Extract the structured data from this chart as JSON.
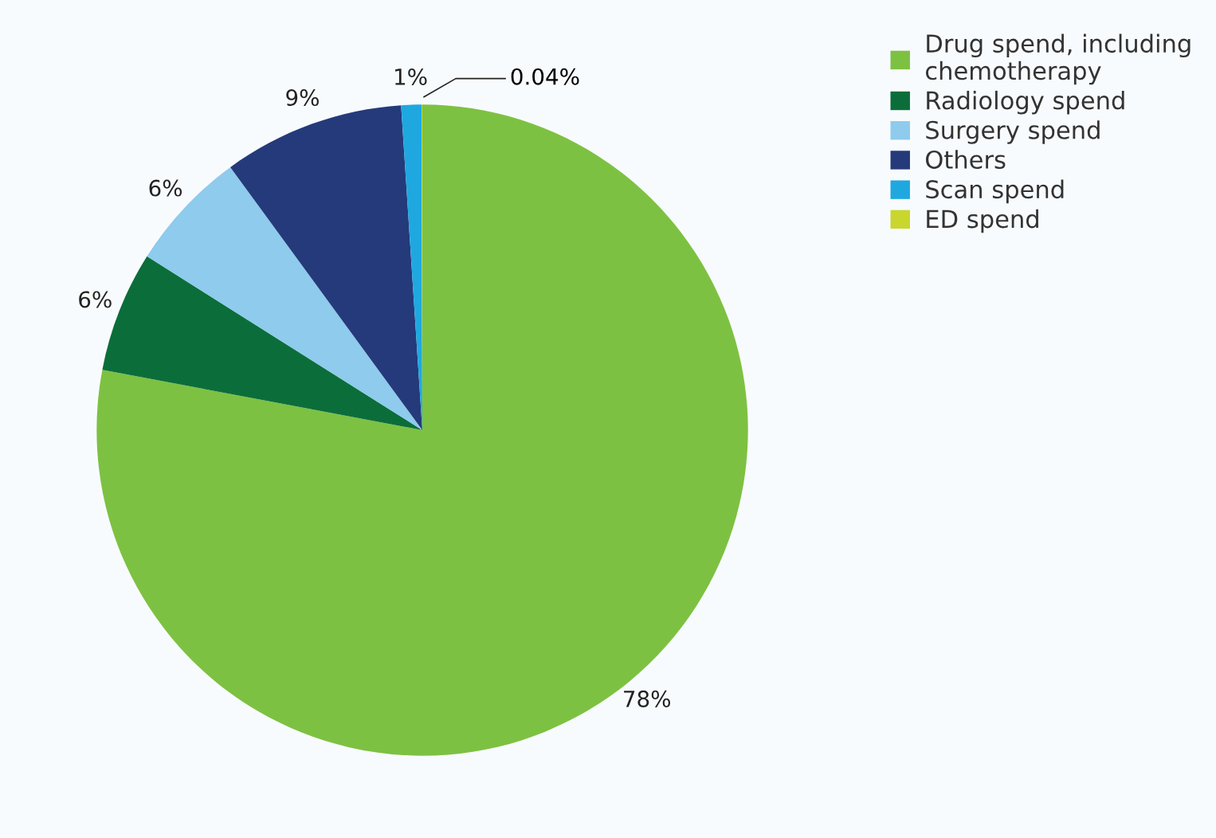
{
  "chart_data": {
    "type": "pie",
    "categories": [
      "Drug spend, including\nchemotherapy",
      "Radiology spend",
      "Surgery spend",
      "Others",
      "Scan spend",
      "ED spend"
    ],
    "values": [
      78,
      6,
      6,
      9,
      1,
      0.04
    ],
    "colors": [
      "#7dc142",
      "#0b6e3a",
      "#8ecbec",
      "#253a7a",
      "#1fa8e0",
      "#c8d62e"
    ],
    "value_labels": [
      "78%",
      "6%",
      "6%",
      "9%",
      "1%",
      "0.04%"
    ],
    "legend": "top right"
  }
}
